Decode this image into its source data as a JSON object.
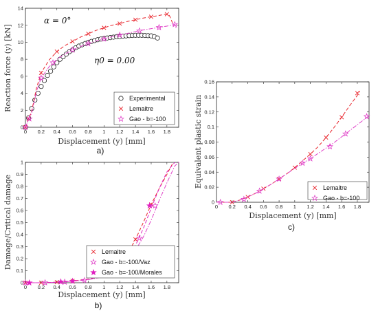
{
  "chart_data": [
    {
      "id": "a",
      "type": "line",
      "panel_label": "a)",
      "xlabel": "Displacement (y) [mm]",
      "ylabel": "Reaction force (y) [kN]",
      "xlim": [
        0,
        1.95
      ],
      "ylim": [
        0,
        14
      ],
      "xticks": [
        0,
        0.2,
        0.4,
        0.6,
        0.8,
        1,
        1.2,
        1.4,
        1.6,
        1.8
      ],
      "yticks": [
        0,
        2,
        4,
        6,
        8,
        10,
        12,
        14
      ],
      "xtick_labels": [
        "0",
        "0.2",
        "0.4",
        "0.6",
        "0.8",
        "1",
        "1.2",
        "1.4",
        "1.6",
        "1.8"
      ],
      "ytick_labels": [
        "0",
        "2",
        "4",
        "6",
        "8",
        "10",
        "12",
        "14"
      ],
      "annotations": [
        "α = 0°",
        "η0 = 0.00"
      ],
      "legend_position": "bottom-right",
      "series": [
        {
          "name": "Experimental",
          "marker": "circle",
          "color": "#000000",
          "line": "none",
          "x": [
            0.0,
            0.04,
            0.08,
            0.12,
            0.16,
            0.2,
            0.24,
            0.28,
            0.32,
            0.36,
            0.4,
            0.44,
            0.48,
            0.52,
            0.56,
            0.6,
            0.64,
            0.68,
            0.72,
            0.76,
            0.8,
            0.84,
            0.88,
            0.92,
            0.96,
            1.0,
            1.04,
            1.08,
            1.12,
            1.16,
            1.2,
            1.24,
            1.28,
            1.32,
            1.36,
            1.4,
            1.44,
            1.48,
            1.52,
            1.56,
            1.6,
            1.64,
            1.68
          ],
          "y": [
            0.0,
            1.1,
            2.2,
            3.2,
            4.0,
            4.8,
            5.5,
            6.1,
            6.6,
            7.1,
            7.6,
            8.0,
            8.3,
            8.6,
            8.9,
            9.1,
            9.35,
            9.55,
            9.7,
            9.85,
            10.0,
            10.1,
            10.2,
            10.3,
            10.38,
            10.45,
            10.5,
            10.55,
            10.6,
            10.65,
            10.68,
            10.72,
            10.75,
            10.78,
            10.8,
            10.82,
            10.82,
            10.82,
            10.8,
            10.78,
            10.75,
            10.65,
            10.5
          ]
        },
        {
          "name": "Lemaitre",
          "marker": "x",
          "color": "#e8232a",
          "line": "dashed",
          "x": [
            0.0,
            0.08,
            0.14,
            0.2,
            0.3,
            0.4,
            0.5,
            0.6,
            0.7,
            0.8,
            0.9,
            1.0,
            1.1,
            1.2,
            1.3,
            1.4,
            1.5,
            1.6,
            1.7,
            1.78,
            1.82,
            1.84,
            1.87
          ],
          "y": [
            0.0,
            1.9,
            4.6,
            6.4,
            7.9,
            8.9,
            9.6,
            10.1,
            10.6,
            11.0,
            11.4,
            11.7,
            12.0,
            12.2,
            12.45,
            12.65,
            12.85,
            13.0,
            13.15,
            13.3,
            13.3,
            13.0,
            12.3
          ],
          "marker_x": [
            0.0,
            0.04,
            0.2,
            0.4,
            0.6,
            0.8,
            1.0,
            1.2,
            1.4,
            1.6,
            1.8
          ],
          "marker_y": [
            0.0,
            1.0,
            6.4,
            8.9,
            10.1,
            11.0,
            11.7,
            12.2,
            12.65,
            13.0,
            13.3
          ]
        },
        {
          "name": "Gao - b=-100",
          "marker": "star",
          "color": "#e040c8",
          "line": "dashdot",
          "x": [
            0.0,
            0.08,
            0.14,
            0.2,
            0.3,
            0.4,
            0.5,
            0.6,
            0.7,
            0.8,
            0.9,
            1.0,
            1.1,
            1.2,
            1.3,
            1.4,
            1.5,
            1.6,
            1.7,
            1.8,
            1.86,
            1.9,
            1.92
          ],
          "y": [
            0.0,
            1.7,
            4.2,
            5.8,
            7.1,
            8.0,
            8.6,
            9.1,
            9.5,
            9.85,
            10.15,
            10.4,
            10.65,
            10.85,
            11.05,
            11.25,
            11.45,
            11.6,
            11.75,
            11.9,
            12.0,
            12.1,
            11.6
          ],
          "marker_x": [
            0.0,
            0.05,
            0.2,
            0.35,
            0.6,
            0.8,
            1.0,
            1.2,
            1.45,
            1.7,
            1.9
          ],
          "marker_y": [
            0.0,
            1.0,
            5.8,
            7.6,
            9.1,
            9.85,
            10.4,
            10.85,
            11.35,
            11.75,
            12.1
          ]
        }
      ]
    },
    {
      "id": "b",
      "type": "line",
      "panel_label": "b)",
      "xlabel": "Displacement (y) [mm]",
      "ylabel": "Damage/Critical damage",
      "xlim": [
        0,
        1.95
      ],
      "ylim": [
        0,
        1
      ],
      "xticks": [
        0,
        0.2,
        0.4,
        0.6,
        0.8,
        1,
        1.2,
        1.4,
        1.6,
        1.8
      ],
      "yticks": [
        0,
        0.1,
        0.2,
        0.3,
        0.4,
        0.5,
        0.6,
        0.7,
        0.8,
        0.9,
        1
      ],
      "xtick_labels": [
        "0",
        "0.2",
        "0.4",
        "0.6",
        "0.8",
        "1",
        "1.2",
        "1.4",
        "1.6",
        "1.8"
      ],
      "ytick_labels": [
        "0",
        "0.1",
        "0.2",
        "0.3",
        "0.4",
        "0.5",
        "0.6",
        "0.7",
        "0.8",
        "0.9",
        "1"
      ],
      "legend_position": "bottom-center",
      "series": [
        {
          "name": "Lemaitre",
          "marker": "x",
          "color": "#e8232a",
          "line": "dashed",
          "x": [
            0.0,
            0.2,
            0.4,
            0.6,
            0.8,
            1.0,
            1.1,
            1.2,
            1.3,
            1.4,
            1.5,
            1.6,
            1.7,
            1.8,
            1.88
          ],
          "y": [
            0.0,
            0.0,
            0.005,
            0.015,
            0.03,
            0.06,
            0.09,
            0.15,
            0.24,
            0.36,
            0.5,
            0.65,
            0.78,
            0.9,
            1.0
          ],
          "marker_x": [
            0.0,
            0.2,
            0.4,
            0.6,
            1.2,
            1.4,
            1.6
          ],
          "marker_y": [
            0.0,
            0.0,
            0.005,
            0.015,
            0.15,
            0.36,
            0.65
          ]
        },
        {
          "name": "Gao - b=-100/Vaz",
          "marker": "star",
          "color": "#e040c8",
          "line": "dashdot",
          "x": [
            0.0,
            0.2,
            0.4,
            0.6,
            0.8,
            1.0,
            1.1,
            1.2,
            1.3,
            1.4,
            1.5,
            1.6,
            1.7,
            1.8,
            1.9,
            1.95
          ],
          "y": [
            0.0,
            0.0,
            0.004,
            0.012,
            0.025,
            0.05,
            0.07,
            0.11,
            0.17,
            0.27,
            0.38,
            0.52,
            0.68,
            0.83,
            0.97,
            1.0
          ],
          "marker_x": [
            0.0,
            0.25,
            0.5,
            0.75,
            1.45,
            1.65
          ],
          "marker_y": [
            0.0,
            0.001,
            0.006,
            0.02,
            0.37,
            0.64
          ]
        },
        {
          "name": "Gao - b=-100/Morales",
          "marker": "filled-star",
          "color": "#e020c0",
          "line": "dashed",
          "x": [
            0.0,
            0.2,
            0.4,
            0.6,
            0.8,
            1.0,
            1.1,
            1.2,
            1.3,
            1.4,
            1.5,
            1.6,
            1.7,
            1.8,
            1.9
          ],
          "y": [
            0.0,
            0.0,
            0.004,
            0.013,
            0.028,
            0.055,
            0.08,
            0.13,
            0.21,
            0.31,
            0.45,
            0.62,
            0.78,
            0.92,
            1.0
          ],
          "marker_x": [
            0.05,
            0.45,
            0.6,
            1.58
          ],
          "marker_y": [
            0.0,
            0.008,
            0.013,
            0.64
          ]
        }
      ]
    },
    {
      "id": "c",
      "type": "line",
      "panel_label": "c)",
      "xlabel": "Displacement (y) [mm]",
      "ylabel": "Equivalent plastic strain",
      "xlim": [
        0,
        1.95
      ],
      "ylim": [
        0,
        0.16
      ],
      "xticks": [
        0,
        0.2,
        0.4,
        0.6,
        0.8,
        1,
        1.2,
        1.4,
        1.6,
        1.8
      ],
      "yticks": [
        0,
        0.02,
        0.04,
        0.06,
        0.08,
        0.1,
        0.12,
        0.14,
        0.16
      ],
      "xtick_labels": [
        "0",
        "0.2",
        "0.4",
        "0.6",
        "0.8",
        "1",
        "1.2",
        "1.4",
        "1.6",
        "1.8"
      ],
      "ytick_labels": [
        "0",
        "0.02",
        "0.04",
        "0.06",
        "0.08",
        "0.1",
        "0.12",
        "0.14",
        "0.16"
      ],
      "legend_position": "bottom-right",
      "series": [
        {
          "name": "Lemaitre",
          "marker": "x",
          "color": "#e8232a",
          "line": "dashed",
          "x": [
            0.0,
            0.2,
            0.3,
            0.4,
            0.5,
            0.6,
            0.7,
            0.8,
            0.9,
            1.0,
            1.1,
            1.2,
            1.3,
            1.4,
            1.5,
            1.6,
            1.7,
            1.8,
            1.83
          ],
          "y": [
            0.0,
            0.0,
            0.003,
            0.007,
            0.012,
            0.018,
            0.024,
            0.031,
            0.038,
            0.046,
            0.055,
            0.064,
            0.074,
            0.086,
            0.099,
            0.113,
            0.128,
            0.142,
            0.148
          ],
          "marker_x": [
            0.2,
            0.4,
            0.6,
            0.8,
            1.0,
            1.2,
            1.4,
            1.6,
            1.8
          ],
          "marker_y": [
            0.0,
            0.007,
            0.018,
            0.031,
            0.046,
            0.064,
            0.086,
            0.113,
            0.145
          ]
        },
        {
          "name": "Gao - b=-100",
          "marker": "star",
          "color": "#e040c8",
          "line": "dashdot",
          "x": [
            0.0,
            0.2,
            0.3,
            0.4,
            0.5,
            0.6,
            0.7,
            0.8,
            0.9,
            1.0,
            1.1,
            1.2,
            1.3,
            1.4,
            1.5,
            1.6,
            1.7,
            1.8,
            1.9,
            1.95
          ],
          "y": [
            0.0,
            0.0,
            0.003,
            0.007,
            0.012,
            0.018,
            0.024,
            0.031,
            0.038,
            0.045,
            0.052,
            0.058,
            0.065,
            0.072,
            0.079,
            0.087,
            0.095,
            0.103,
            0.111,
            0.115
          ],
          "marker_x": [
            0.05,
            0.35,
            0.55,
            0.8,
            1.1,
            1.2,
            1.45,
            1.65,
            1.92
          ],
          "marker_y": [
            0.0,
            0.004,
            0.015,
            0.031,
            0.052,
            0.058,
            0.074,
            0.091,
            0.114
          ]
        }
      ]
    }
  ]
}
